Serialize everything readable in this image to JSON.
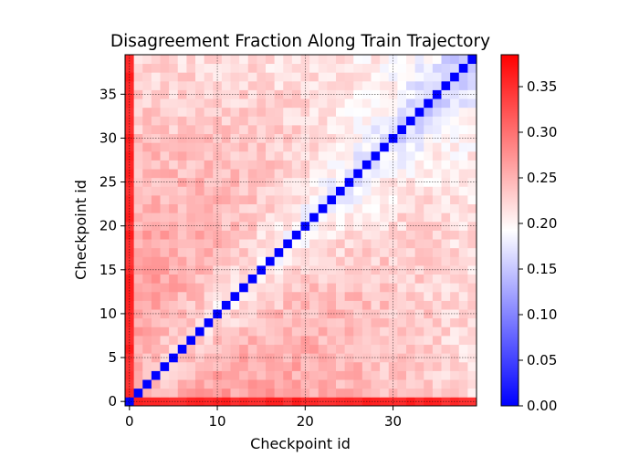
{
  "chart_data": {
    "type": "heatmap",
    "title": "Disagreement Fraction Along Train Trajectory",
    "xlabel": "Checkpoint id",
    "ylabel": "Checkpoint id",
    "n": 40,
    "x_ticks": [
      0,
      10,
      20,
      30
    ],
    "y_ticks": [
      0,
      5,
      10,
      15,
      20,
      25,
      30,
      35
    ],
    "grid": true,
    "colormap": "bwr",
    "diagonal_value": 0.0,
    "colorbar": {
      "vmin": 0.0,
      "vmax": 0.385,
      "ticks": [
        "0.00",
        "0.05",
        "0.10",
        "0.15",
        "0.20",
        "0.25",
        "0.30",
        "0.35"
      ]
    },
    "colors": {
      "low": "#0000ff",
      "mid": "#ffffff",
      "high": "#ff0000"
    },
    "values_note_axes": "value(i,j) for row i and column j, i != j",
    "value_model": {
      "first_index_high": 0.355,
      "far_early": 0.3,
      "far_late": 0.22,
      "near_diag_early": 0.24,
      "near_diag_late": 0.145,
      "noise": 0.02
    }
  }
}
